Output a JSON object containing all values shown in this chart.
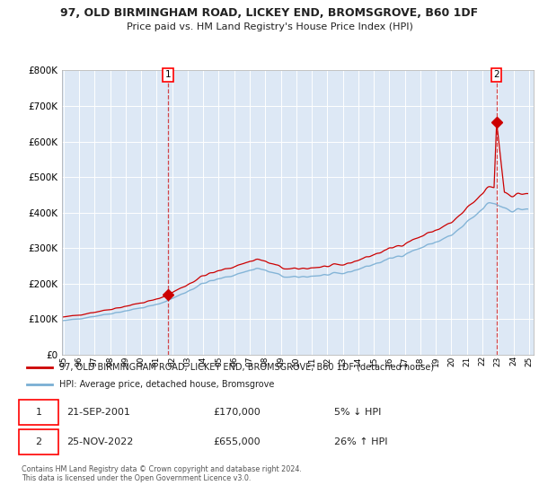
{
  "title_line1": "97, OLD BIRMINGHAM ROAD, LICKEY END, BROMSGROVE, B60 1DF",
  "title_line2": "Price paid vs. HM Land Registry's House Price Index (HPI)",
  "background_color": "#ffffff",
  "plot_bg_color": "#dde8f5",
  "grid_color": "#ffffff",
  "hpi_color": "#7aafd4",
  "price_color": "#cc0000",
  "dashed_color": "#cc0000",
  "sale1_date": "21-SEP-2001",
  "sale1_price": 170000,
  "sale1_label": "5% ↓ HPI",
  "sale1_x": 2001.72,
  "sale1_y": 170000,
  "sale2_date": "25-NOV-2022",
  "sale2_price": 655000,
  "sale2_label": "26% ↑ HPI",
  "sale2_x": 2022.9,
  "sale2_y": 655000,
  "legend_line1": "97, OLD BIRMINGHAM ROAD, LICKEY END, BROMSGROVE, B60 1DF (detached house)",
  "legend_line2": "HPI: Average price, detached house, Bromsgrove",
  "footnote": "Contains HM Land Registry data © Crown copyright and database right 2024.\nThis data is licensed under the Open Government Licence v3.0.",
  "ylim": [
    0,
    800000
  ],
  "yticks": [
    0,
    100000,
    200000,
    300000,
    400000,
    500000,
    600000,
    700000,
    800000
  ],
  "xlim_start": 1995,
  "xlim_end": 2025
}
